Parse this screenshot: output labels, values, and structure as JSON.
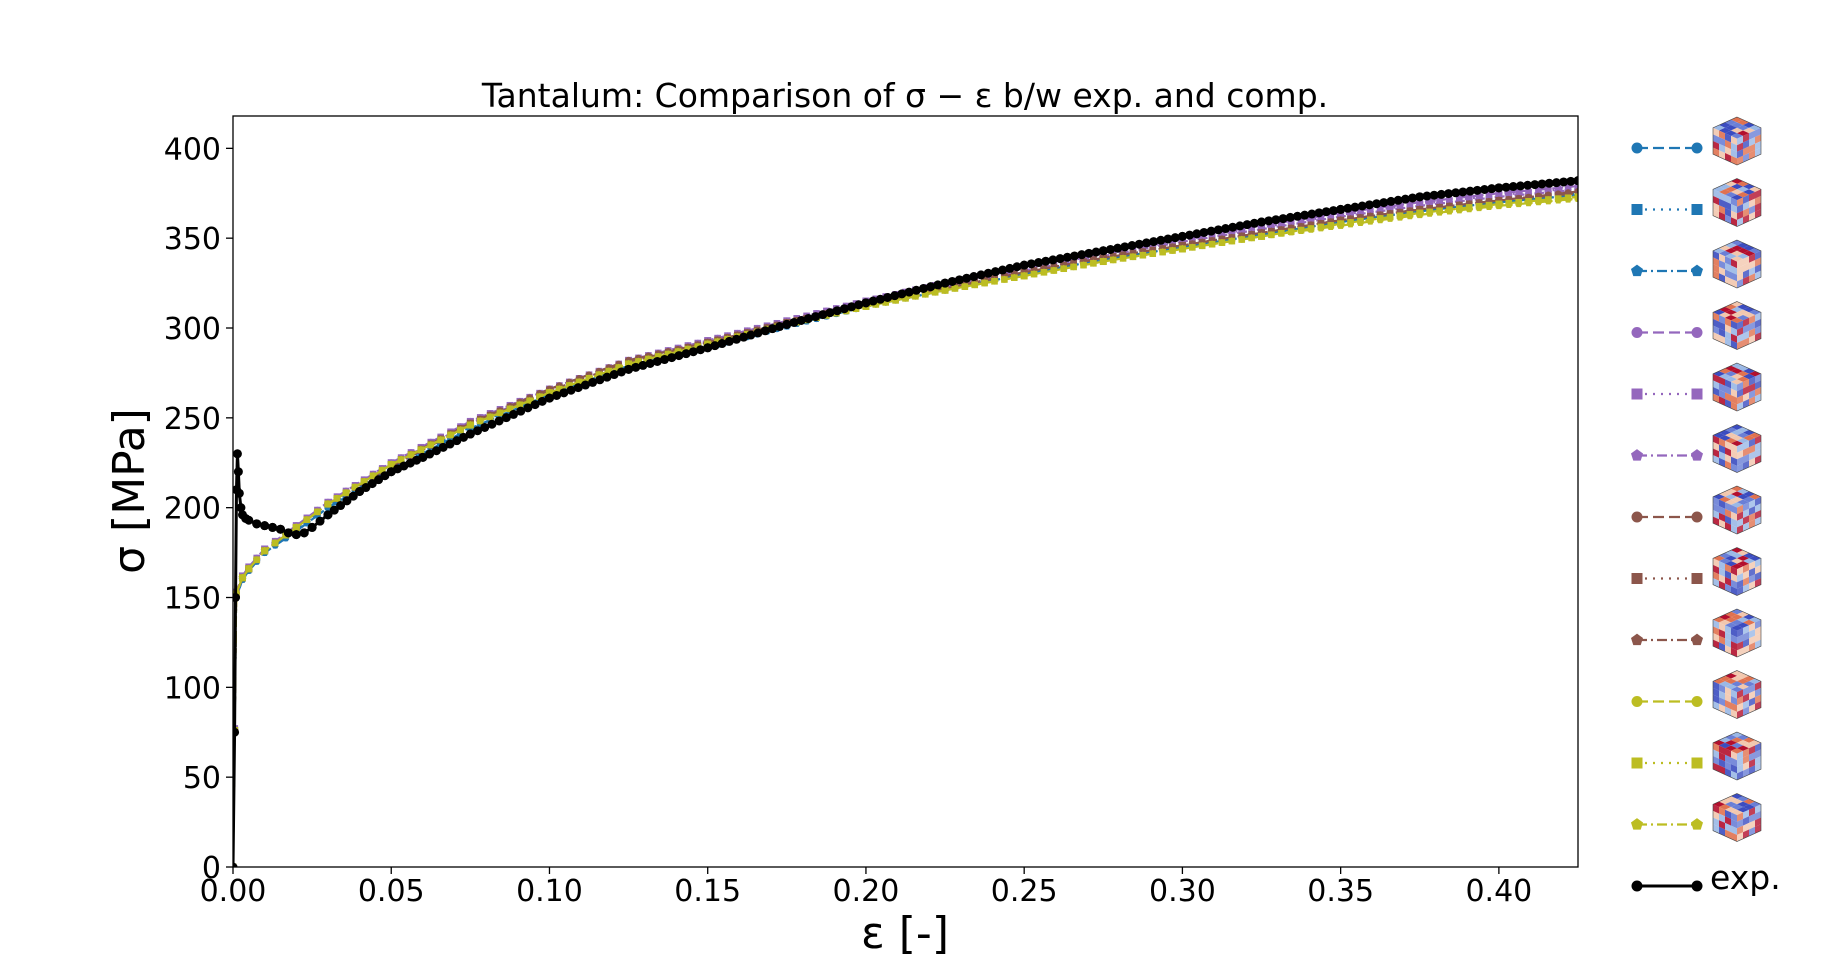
{
  "chart_data": {
    "type": "line",
    "title": "Tantalum: Comparison of σ − ε b/w exp. and comp.",
    "xlabel": "ε [-]",
    "ylabel": "σ [MPa]",
    "xlim": [
      0.0,
      0.425
    ],
    "ylim": [
      0,
      418
    ],
    "xticks": [
      "0.00",
      "0.05",
      "0.10",
      "0.15",
      "0.20",
      "0.25",
      "0.30",
      "0.35",
      "0.40"
    ],
    "yticks": [
      "0",
      "50",
      "100",
      "150",
      "200",
      "250",
      "300",
      "350",
      "400"
    ],
    "legend_position": "outside-right",
    "grid": false,
    "colors": {
      "blue": "#1f77b4",
      "purple": "#9467bd",
      "brown": "#8c564b",
      "olive": "#bcbd22",
      "black": "#000000"
    },
    "series": [
      {
        "color": "#1f77b4",
        "linestyle": "dashed",
        "marker": "circle",
        "label_icon": "microstructure-cube-icon",
        "x": [
          0,
          0.0005,
          0.001,
          0.003,
          0.005,
          0.01,
          0.02,
          0.03,
          0.05,
          0.075,
          0.1,
          0.125,
          0.15,
          0.175,
          0.2,
          0.225,
          0.25,
          0.275,
          0.3,
          0.325,
          0.35,
          0.375,
          0.4,
          0.425
        ],
        "y": [
          0,
          75,
          150,
          160,
          165,
          175,
          187,
          200,
          221,
          244,
          263,
          279,
          289,
          301,
          312,
          321,
          330,
          338,
          345,
          352,
          359,
          365,
          370,
          374
        ]
      },
      {
        "color": "#1f77b4",
        "linestyle": "dotted",
        "marker": "square",
        "label_icon": "microstructure-cube-icon",
        "x": [
          0,
          0.0005,
          0.001,
          0.003,
          0.005,
          0.01,
          0.02,
          0.03,
          0.05,
          0.075,
          0.1,
          0.125,
          0.15,
          0.175,
          0.2,
          0.225,
          0.25,
          0.275,
          0.3,
          0.325,
          0.35,
          0.375,
          0.4,
          0.425
        ],
        "y": [
          0,
          76,
          151,
          161,
          166,
          176,
          188,
          201,
          222,
          245,
          264,
          280,
          291,
          302,
          313,
          322,
          331,
          339,
          346,
          353,
          360,
          366,
          371,
          375
        ]
      },
      {
        "color": "#1f77b4",
        "linestyle": "dashdot",
        "marker": "pentagon",
        "label_icon": "microstructure-cube-icon",
        "x": [
          0,
          0.0005,
          0.001,
          0.003,
          0.005,
          0.01,
          0.02,
          0.03,
          0.05,
          0.075,
          0.1,
          0.125,
          0.15,
          0.175,
          0.2,
          0.225,
          0.25,
          0.275,
          0.3,
          0.325,
          0.35,
          0.375,
          0.4,
          0.425
        ],
        "y": [
          0,
          75,
          150,
          160,
          165,
          175,
          187,
          200,
          221,
          244,
          263,
          279,
          290,
          301,
          312,
          321,
          330,
          338,
          345,
          352,
          359,
          365,
          370,
          374
        ]
      },
      {
        "color": "#9467bd",
        "linestyle": "dashed",
        "marker": "circle",
        "label_icon": "microstructure-cube-icon",
        "x": [
          0,
          0.0005,
          0.001,
          0.003,
          0.005,
          0.01,
          0.02,
          0.03,
          0.05,
          0.075,
          0.1,
          0.125,
          0.15,
          0.175,
          0.2,
          0.225,
          0.25,
          0.275,
          0.3,
          0.325,
          0.35,
          0.375,
          0.4,
          0.425
        ],
        "y": [
          0,
          77,
          153,
          162,
          167,
          177,
          190,
          203,
          225,
          248,
          266,
          282,
          293,
          304,
          315,
          325,
          334,
          342,
          350,
          357,
          364,
          370,
          375,
          379
        ]
      },
      {
        "color": "#9467bd",
        "linestyle": "dotted",
        "marker": "square",
        "label_icon": "microstructure-cube-icon",
        "x": [
          0,
          0.0005,
          0.001,
          0.003,
          0.005,
          0.01,
          0.02,
          0.03,
          0.05,
          0.075,
          0.1,
          0.125,
          0.15,
          0.175,
          0.2,
          0.225,
          0.25,
          0.275,
          0.3,
          0.325,
          0.35,
          0.375,
          0.4,
          0.425
        ],
        "y": [
          0,
          77,
          153,
          162,
          167,
          177,
          190,
          203,
          225,
          248,
          266,
          282,
          293,
          304,
          315,
          325,
          333,
          341,
          349,
          356,
          363,
          369,
          374,
          378
        ]
      },
      {
        "color": "#9467bd",
        "linestyle": "dashdot",
        "marker": "pentagon",
        "label_icon": "microstructure-cube-icon",
        "x": [
          0,
          0.0005,
          0.001,
          0.003,
          0.005,
          0.01,
          0.02,
          0.03,
          0.05,
          0.075,
          0.1,
          0.125,
          0.15,
          0.175,
          0.2,
          0.225,
          0.25,
          0.275,
          0.3,
          0.325,
          0.35,
          0.375,
          0.4,
          0.425
        ],
        "y": [
          0,
          76,
          152,
          161,
          166,
          176,
          189,
          202,
          224,
          247,
          265,
          281,
          292,
          303,
          314,
          323,
          332,
          340,
          348,
          355,
          362,
          368,
          373,
          377
        ]
      },
      {
        "color": "#8c564b",
        "linestyle": "dashed",
        "marker": "circle",
        "label_icon": "microstructure-cube-icon",
        "x": [
          0,
          0.0005,
          0.001,
          0.003,
          0.005,
          0.01,
          0.02,
          0.03,
          0.05,
          0.075,
          0.1,
          0.125,
          0.15,
          0.175,
          0.2,
          0.225,
          0.25,
          0.275,
          0.3,
          0.325,
          0.35,
          0.375,
          0.4,
          0.425
        ],
        "y": [
          0,
          76,
          152,
          161,
          166,
          176,
          189,
          202,
          224,
          247,
          266,
          282,
          292,
          303,
          313,
          322,
          331,
          339,
          346,
          353,
          360,
          366,
          371,
          376
        ]
      },
      {
        "color": "#8c564b",
        "linestyle": "dotted",
        "marker": "square",
        "label_icon": "microstructure-cube-icon",
        "x": [
          0,
          0.0005,
          0.001,
          0.003,
          0.005,
          0.01,
          0.02,
          0.03,
          0.05,
          0.075,
          0.1,
          0.125,
          0.15,
          0.175,
          0.2,
          0.225,
          0.25,
          0.275,
          0.3,
          0.325,
          0.35,
          0.375,
          0.4,
          0.425
        ],
        "y": [
          0,
          76,
          152,
          161,
          166,
          176,
          189,
          202,
          224,
          247,
          265,
          281,
          292,
          303,
          313,
          322,
          331,
          339,
          346,
          353,
          360,
          366,
          371,
          375
        ]
      },
      {
        "color": "#8c564b",
        "linestyle": "dashdot",
        "marker": "pentagon",
        "label_icon": "microstructure-cube-icon",
        "x": [
          0,
          0.0005,
          0.001,
          0.003,
          0.005,
          0.01,
          0.02,
          0.03,
          0.05,
          0.075,
          0.1,
          0.125,
          0.15,
          0.175,
          0.2,
          0.225,
          0.25,
          0.275,
          0.3,
          0.325,
          0.35,
          0.375,
          0.4,
          0.425
        ],
        "y": [
          0,
          76,
          152,
          161,
          166,
          176,
          189,
          202,
          223,
          246,
          265,
          281,
          292,
          303,
          313,
          322,
          331,
          339,
          346,
          353,
          360,
          366,
          371,
          375
        ]
      },
      {
        "color": "#bcbd22",
        "linestyle": "dashed",
        "marker": "circle",
        "label_icon": "microstructure-cube-icon",
        "x": [
          0,
          0.0005,
          0.001,
          0.003,
          0.005,
          0.01,
          0.02,
          0.03,
          0.05,
          0.075,
          0.1,
          0.125,
          0.15,
          0.175,
          0.2,
          0.225,
          0.25,
          0.275,
          0.3,
          0.325,
          0.35,
          0.375,
          0.4,
          0.425
        ],
        "y": [
          0,
          76,
          152,
          161,
          166,
          176,
          189,
          202,
          224,
          246,
          264,
          280,
          291,
          302,
          312,
          321,
          329,
          337,
          344,
          351,
          358,
          364,
          369,
          373
        ]
      },
      {
        "color": "#bcbd22",
        "linestyle": "dotted",
        "marker": "square",
        "label_icon": "microstructure-cube-icon",
        "x": [
          0,
          0.0005,
          0.001,
          0.003,
          0.005,
          0.01,
          0.02,
          0.03,
          0.05,
          0.075,
          0.1,
          0.125,
          0.15,
          0.175,
          0.2,
          0.225,
          0.25,
          0.275,
          0.3,
          0.325,
          0.35,
          0.375,
          0.4,
          0.425
        ],
        "y": [
          0,
          76,
          152,
          161,
          166,
          176,
          189,
          202,
          224,
          246,
          264,
          280,
          291,
          302,
          312,
          321,
          329,
          337,
          344,
          351,
          358,
          364,
          369,
          373
        ]
      },
      {
        "color": "#bcbd22",
        "linestyle": "dashdot",
        "marker": "pentagon",
        "label_icon": "microstructure-cube-icon",
        "x": [
          0,
          0.0005,
          0.001,
          0.003,
          0.005,
          0.01,
          0.02,
          0.03,
          0.05,
          0.075,
          0.1,
          0.125,
          0.15,
          0.175,
          0.2,
          0.225,
          0.25,
          0.275,
          0.3,
          0.325,
          0.35,
          0.375,
          0.4,
          0.425
        ],
        "y": [
          0,
          76,
          152,
          161,
          166,
          176,
          189,
          202,
          224,
          246,
          264,
          280,
          291,
          302,
          312,
          321,
          329,
          337,
          344,
          351,
          357,
          363,
          368,
          372
        ]
      },
      {
        "name": "exp.",
        "color": "#000000",
        "linestyle": "solid",
        "marker": "circle",
        "x": [
          0,
          0.0005,
          0.0008,
          0.0011,
          0.0014,
          0.0017,
          0.002,
          0.0025,
          0.003,
          0.004,
          0.005,
          0.0075,
          0.01,
          0.0125,
          0.015,
          0.0175,
          0.02,
          0.0225,
          0.025,
          0.03,
          0.04,
          0.05,
          0.06,
          0.075,
          0.1,
          0.125,
          0.15,
          0.175,
          0.2,
          0.225,
          0.25,
          0.275,
          0.3,
          0.325,
          0.35,
          0.375,
          0.4,
          0.425
        ],
        "y": [
          0,
          75,
          150,
          210,
          230,
          220,
          208,
          200,
          196,
          194,
          193,
          191,
          190,
          189,
          188,
          186,
          185,
          186,
          189,
          196,
          209,
          220,
          228,
          241,
          261,
          277,
          289,
          302,
          314,
          325,
          335,
          343,
          351,
          359,
          366,
          373,
          378,
          382
        ]
      }
    ]
  }
}
